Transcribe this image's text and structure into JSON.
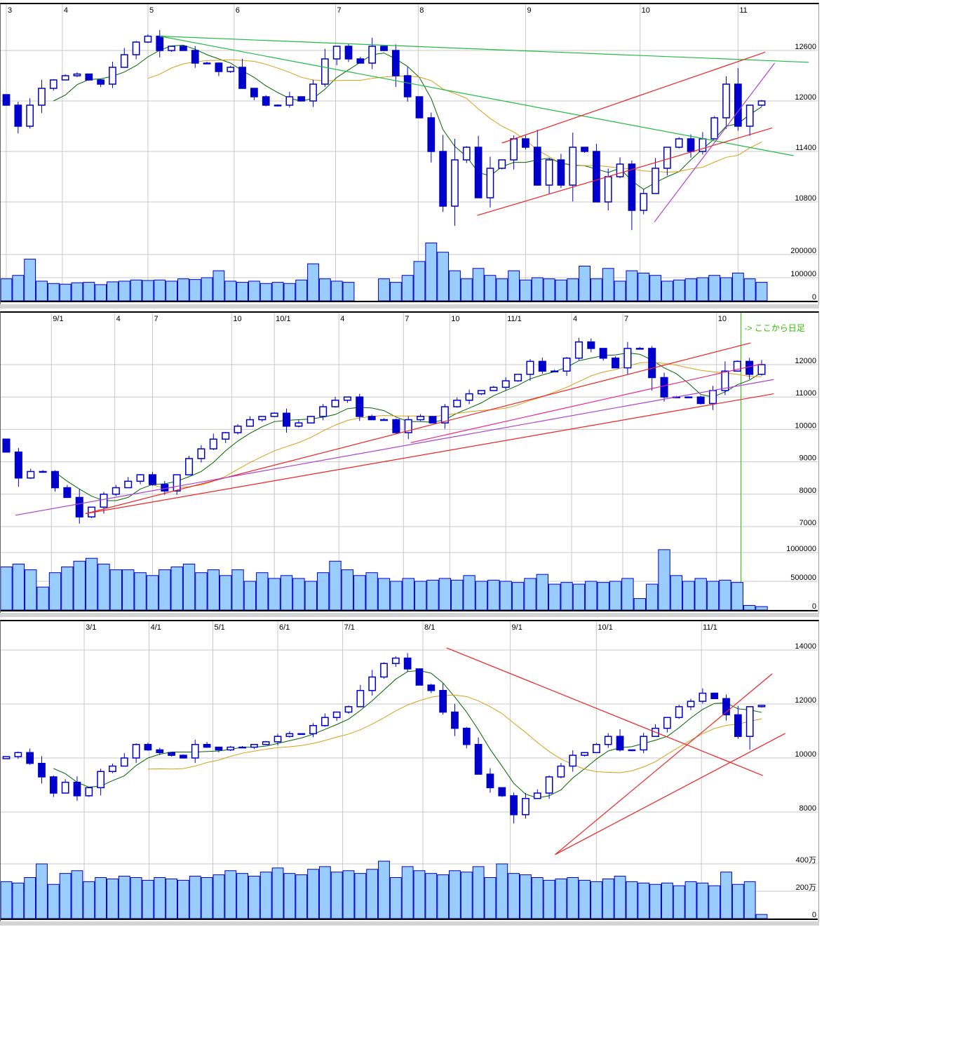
{
  "chart_data": [
    {
      "type": "candlestick",
      "x_labels": [
        {
          "label": "3",
          "at": 0
        },
        {
          "label": "4",
          "at": 4.75
        },
        {
          "label": "5",
          "at": 12
        },
        {
          "label": "6",
          "at": 19.3
        },
        {
          "label": "7",
          "at": 27.9
        },
        {
          "label": "8",
          "at": 34.9
        },
        {
          "label": "9",
          "at": 44
        },
        {
          "label": "10",
          "at": 53.7
        },
        {
          "label": "11",
          "at": 62
        }
      ],
      "price_ticks": [
        "12600",
        "12000",
        "11400",
        "10800"
      ],
      "price_tick_values": [
        12600,
        12000,
        11400,
        10800
      ],
      "ylim": [
        10350,
        13130
      ],
      "volume_ticks": [
        "200000",
        "100000",
        "0"
      ],
      "volume_tick_values": [
        200000,
        100000,
        0
      ],
      "close": [
        11950,
        11700,
        11950,
        12150,
        12250,
        12300,
        12320,
        12250,
        12200,
        12400,
        12550,
        12700,
        12770,
        12600,
        12650,
        12600,
        12450,
        12450,
        12350,
        12400,
        12150,
        12050,
        11950,
        11950,
        12050,
        12000,
        12200,
        12500,
        12650,
        12500,
        12450,
        12650,
        12600,
        12300,
        12050,
        11800,
        11400,
        10750,
        11300,
        11450,
        10850,
        11200,
        11300,
        11550,
        11450,
        11000,
        11300,
        11000,
        11450,
        11400,
        10800,
        11100,
        11250,
        10700,
        10900,
        11200,
        11450,
        11550,
        11400,
        11550,
        11800,
        12200,
        11700,
        11950,
        12000
      ],
      "volume": [
        95000,
        110000,
        180000,
        85000,
        75000,
        72000,
        78000,
        80000,
        70000,
        82000,
        85000,
        90000,
        88000,
        90000,
        85000,
        95000,
        92000,
        100000,
        130000,
        85000,
        80000,
        85000,
        75000,
        80000,
        75000,
        90000,
        160000,
        95000,
        85000,
        80000,
        0,
        0,
        95000,
        80000,
        110000,
        170000,
        250000,
        210000,
        130000,
        95000,
        140000,
        110000,
        95000,
        130000,
        90000,
        100000,
        95000,
        90000,
        95000,
        150000,
        95000,
        140000,
        85000,
        130000,
        120000,
        110000,
        85000,
        90000,
        95000,
        100000,
        110000,
        100000,
        120000,
        95000,
        80000
      ],
      "moving_averages": [
        {
          "period": 5,
          "color": "#006400"
        },
        {
          "period": 13,
          "color": "#d4a017"
        }
      ],
      "trendlines": [
        {
          "color": "#22bb44",
          "points": [
            [
              13,
              12770
            ],
            [
              68,
              12460
            ]
          ]
        },
        {
          "color": "#22bb44",
          "points": [
            [
              13,
              12770
            ],
            [
              66.7,
              11350
            ]
          ]
        },
        {
          "color": "#ee2222",
          "points": [
            [
              42,
              11500
            ],
            [
              64.3,
              12580
            ]
          ]
        },
        {
          "color": "#ee2222",
          "points": [
            [
              39.9,
              10640
            ],
            [
              64.9,
              11680
            ]
          ]
        },
        {
          "color": "#aa44cc",
          "points": [
            [
              54.9,
              10560
            ],
            [
              65.1,
              12450
            ]
          ]
        }
      ]
    },
    {
      "type": "candlestick",
      "x_labels": [
        {
          "label": "9/1",
          "at": 3.7
        },
        {
          "label": "4",
          "at": 8.9
        },
        {
          "label": "7",
          "at": 12
        },
        {
          "label": "10",
          "at": 18.5
        },
        {
          "label": "10/1",
          "at": 22
        },
        {
          "label": "4",
          "at": 27.3
        },
        {
          "label": "7",
          "at": 32.6
        },
        {
          "label": "10",
          "at": 36.4
        },
        {
          "label": "11/1",
          "at": 41
        },
        {
          "label": "4",
          "at": 46.4
        },
        {
          "label": "7",
          "at": 50.6
        },
        {
          "label": "10",
          "at": 58.3
        }
      ],
      "price_ticks": [
        "12000",
        "11000",
        "10000",
        "9000",
        "8000",
        "7000"
      ],
      "price_tick_values": [
        12000,
        11000,
        10000,
        9000,
        8000,
        7000
      ],
      "ylim": [
        6560,
        13560
      ],
      "volume_ticks": [
        "1000000",
        "500000",
        "0"
      ],
      "volume_tick_values": [
        1000000,
        500000,
        0
      ],
      "annotation": {
        "text": "-> ここから日足",
        "at": 60.3,
        "color": "#33bb00"
      },
      "close": [
        9300,
        8500,
        8700,
        8700,
        8200,
        7900,
        7300,
        7600,
        8000,
        8200,
        8400,
        8600,
        8300,
        8100,
        8600,
        9100,
        9400,
        9700,
        9900,
        10100,
        10300,
        10400,
        10500,
        10100,
        10200,
        10400,
        10700,
        10900,
        11000,
        10400,
        10300,
        10300,
        9900,
        10300,
        10400,
        10200,
        10700,
        10900,
        11100,
        11200,
        11300,
        11500,
        11700,
        12100,
        11800,
        11800,
        12200,
        12700,
        12500,
        12200,
        11900,
        12500,
        12500,
        11600,
        11000,
        11000,
        11000,
        10800,
        11200,
        11800,
        12100,
        11700,
        12000
      ],
      "volume": [
        750000,
        800000,
        700000,
        400000,
        650000,
        750000,
        850000,
        900000,
        800000,
        700000,
        700000,
        650000,
        600000,
        700000,
        750000,
        800000,
        650000,
        700000,
        600000,
        700000,
        500000,
        650000,
        550000,
        600000,
        550000,
        500000,
        650000,
        850000,
        700000,
        600000,
        650000,
        550000,
        500000,
        550000,
        500000,
        520000,
        550000,
        520000,
        600000,
        500000,
        520000,
        500000,
        480000,
        550000,
        620000,
        450000,
        480000,
        450000,
        500000,
        480000,
        500000,
        550000,
        200000,
        450000,
        1050000,
        600000,
        500000,
        550000,
        500000,
        520000,
        480000,
        80000,
        60000
      ],
      "moving_averages": [
        {
          "period": 5,
          "color": "#006400"
        },
        {
          "period": 13,
          "color": "#d4a017"
        }
      ],
      "trendlines": [
        {
          "color": "#ee2222",
          "points": [
            [
              6.5,
              7400
            ],
            [
              61.1,
              12670
            ]
          ]
        },
        {
          "color": "#ee2222",
          "points": [
            [
              6.5,
              7400
            ],
            [
              63,
              11100
            ]
          ]
        },
        {
          "color": "#aa44cc",
          "points": [
            [
              0.75,
              7350
            ],
            [
              63,
              11540
            ]
          ]
        },
        {
          "color": "#ee2288",
          "points": [
            [
              33.2,
              9590
            ],
            [
              62,
              12020
            ]
          ]
        }
      ]
    },
    {
      "type": "candlestick",
      "x_labels": [
        {
          "label": "3/1",
          "at": 6.6
        },
        {
          "label": "4/1",
          "at": 12.1
        },
        {
          "label": "5/1",
          "at": 17.5
        },
        {
          "label": "6/1",
          "at": 23
        },
        {
          "label": "7/1",
          "at": 28.5
        },
        {
          "label": "8/1",
          "at": 35.3
        },
        {
          "label": "9/1",
          "at": 42.7
        },
        {
          "label": "10/1",
          "at": 50
        },
        {
          "label": "11/1",
          "at": 58.9
        }
      ],
      "price_ticks": [
        "14000",
        "12000",
        "10000",
        "8000"
      ],
      "price_tick_values": [
        14000,
        12000,
        10000,
        8000
      ],
      "ylim": [
        6360,
        15010
      ],
      "volume_ticks": [
        "400万",
        "200万",
        "0"
      ],
      "volume_tick_values": [
        400,
        200,
        0
      ],
      "close": [
        10050,
        10200,
        9800,
        9300,
        8700,
        9100,
        8600,
        8900,
        9500,
        9700,
        10000,
        10500,
        10300,
        10200,
        10100,
        10000,
        10500,
        10400,
        10300,
        10400,
        10400,
        10500,
        10600,
        10800,
        10900,
        10900,
        11200,
        11500,
        11700,
        11900,
        12500,
        13000,
        13500,
        13700,
        13300,
        12700,
        12500,
        11700,
        11100,
        10500,
        9400,
        8900,
        8600,
        7900,
        8500,
        8700,
        9300,
        9700,
        10100,
        10200,
        10500,
        10800,
        10300,
        10300,
        10800,
        11100,
        11500,
        11900,
        12100,
        12400,
        12200,
        11600,
        10800,
        11900,
        11950
      ],
      "volume": [
        270,
        260,
        300,
        400,
        250,
        330,
        350,
        270,
        300,
        290,
        310,
        300,
        280,
        300,
        290,
        280,
        310,
        300,
        320,
        350,
        330,
        310,
        340,
        370,
        330,
        320,
        360,
        380,
        340,
        350,
        330,
        360,
        420,
        300,
        380,
        350,
        330,
        320,
        350,
        340,
        380,
        300,
        400,
        330,
        320,
        300,
        280,
        290,
        300,
        280,
        270,
        290,
        310,
        270,
        260,
        250,
        260,
        240,
        270,
        260,
        240,
        340,
        250,
        270,
        30
      ],
      "moving_averages": [
        {
          "period": 5,
          "color": "#006400"
        },
        {
          "period": 13,
          "color": "#d4a017"
        }
      ],
      "trendlines": [
        {
          "color": "#ee2222",
          "points": [
            [
              37.3,
              14080
            ],
            [
              64.1,
              9350
            ]
          ]
        },
        {
          "color": "#ee2222",
          "points": [
            [
              46.5,
              6420
            ],
            [
              64.9,
              13120
            ]
          ]
        },
        {
          "color": "#ee2222",
          "points": [
            [
              46.5,
              6420
            ],
            [
              66,
              10910
            ]
          ]
        }
      ]
    }
  ],
  "colors": {
    "up_body": "#ffffff",
    "down_body": "#0000cc",
    "candle_edge": "#0000cc",
    "volume_fill": "#99ccff",
    "grid": "#c8c8c8"
  }
}
